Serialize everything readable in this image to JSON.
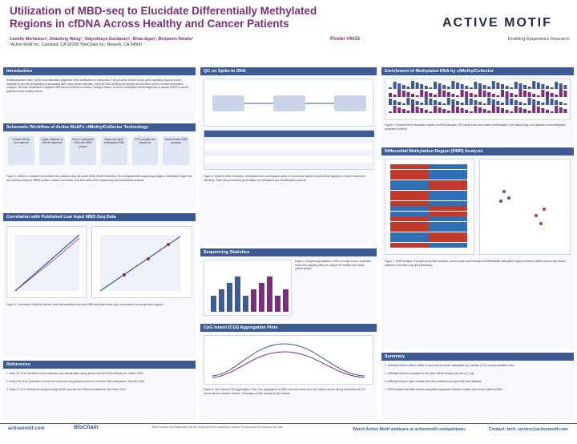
{
  "header": {
    "title": "Utilization of MBD-seq to Elucidate Differentially Methylated Regions in cfDNA Across Healthy and Cancer Patients",
    "authors": "Camille Michelson¹, Shaoleng Wang¹, Vidyodhaya Sundaram¹, Brian Egan¹, Benjamin Delatte¹",
    "affiliations": "¹Active Motif Inc. Carlsbad, CA 92008   ²BioChain Inc. Newark, CA 94560",
    "poster_number": "Poster #4415",
    "logo_text": "ACTIVE MOTIF",
    "logo_tagline": "Enabling Epigenetics Research"
  },
  "sections": {
    "introduction": {
      "heading": "Introduction",
      "text": "5-Methylcytosine (5mC) is the most abundant epigenetic DNA modification in eukaryotes. The presence of 5mC at key gene regulatory regions is well-established, and its deregulation is associated with many human diseases. Cell-free DNA (cfDNA) methylation are sensitive tools to monitor methylation changes. We have developed a targeted MBD-based enrichment method, MethylCollector, to enrich methylated cfDNA fragments to assess DMRs in cancer patients versus healthy donors."
    },
    "workflow": {
      "heading": "Schematic Workflow of Active Motif's cfMethylCollector Technology",
      "steps": [
        "Extract cfDNA from plasma",
        "Ligate adapters to cfDNA fragments",
        "Enrich methylated DNA with MBD protein",
        "Wash and elute methylated DNA",
        "PCR amplify and sequence",
        "Bioinformatic DMR analysis"
      ],
      "caption": "Figure 1. cfDNA is extracted and purified from plasma using the Active Motif cfDNA Purification Kit and ligated with sequencing adapters. Methylated fragments are captured using the MBD2 protein, washed and eluted, and then indexed for sequencing and downstream analysis."
    },
    "correlation": {
      "heading": "Correlation with Published Low Input MBD-Seq Data",
      "caption": "Figure 2. Correlation of MethylCollector data with published low input MBD-seq data shows high concordance across genomic regions."
    },
    "references": {
      "heading": "References",
      "items": [
        "1. Shen SY, et al. Sensitive tumour detection and classification using plasma cell-free DNA methylomes. Nature 2018.",
        "2. Nuzzo PV, et al. Detection of renal cell carcinoma using plasma and urine cell-free DNA methylomes. Nat Med 2020.",
        "3. Taiwo O, et al. Methylome analysis using MeDIP-seq with low DNA concentrations. Nat Protoc 2012."
      ]
    },
    "qc_spike": {
      "heading": "QC on Spike-In DNA",
      "caption": "Figure 3. Spike-In DNA Production. Methylated and unmethylated spike-in controls are added to each cfDNA sample to monitor enrichment efficiency. Table shows recovery percentages for methylated and unmethylated controls."
    },
    "sequencing": {
      "heading": "Sequencing Statistics",
      "caption": "Figure 4. Sequencing Statistics. PBIP of unique reads, duplicated reads and mapping rates per sample for healthy and cancer patient groups."
    },
    "cpg": {
      "heading": "CpG Island (CGI) Aggregation Plots",
      "caption": "Figure 5. CpG Island (CGI) Aggregation Plots. Top: Aggregation of MBD-enriched reads over CpG islands shows strong enrichment at CGI shores across samples. Bottom: Heatmaps of read density at CpG islands."
    },
    "enrichment": {
      "heading": "Enrichment of Methylated DNA by cfMethylCollector",
      "caption": "Figure 6. Enrichment of methylated regions in cfDNA samples. IGV tracks show enrichment at methylated CpG islands (top) and depletion at unmethylated promoters (bottom)."
    },
    "dmr": {
      "heading": "Differential Methylation Region (DMR) Analysis",
      "caption": "Figure 7. DMR Analysis. Principal component analysis, volcano plots and heatmaps of differentially methylated regions between healthy donors and cancer patients (colorectal, lung and pancreatic)."
    },
    "summary": {
      "heading": "Summary",
      "items": [
        "1. cfMethylCollector utilizes MBD2 to bind and pull down methylated CpG islands (CGI) and pre-amplifies them.",
        "2. cfMethylCollector is suitable for low input cfDNA samples (as low as 1 ng).",
        "3. cfMethylCollector data correlate well with published low input MBD-seq datasets.",
        "4. DMR analysis identifies distinct methylation signatures between healthy and cancer patient cfDNA."
      ]
    }
  },
  "footer": {
    "website": "activemotif.com",
    "partner": "BioChain",
    "disclaimer": "Brand names and trademarks are the property of their respective owners. Products are for research use only.",
    "webinar": "Watch Active Motif webinars at activemotif.com/webinars",
    "contact": "Contact: tech_service@activemotif.com"
  },
  "colors": {
    "accent": "#7a2f7a",
    "section_header": "#3d5a93",
    "heat_high": "#c0392b",
    "heat_low": "#2e6fb5"
  }
}
